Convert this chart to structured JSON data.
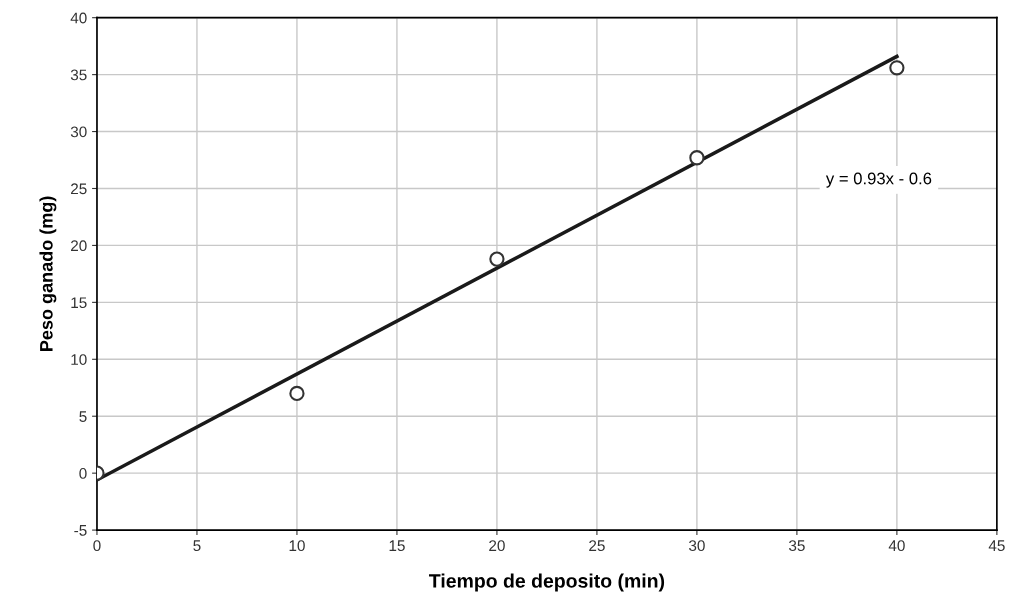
{
  "chart_data": {
    "type": "scatter",
    "xlabel": "Tiempo de deposito (min)",
    "ylabel": "Peso ganado (mg)",
    "xlim": [
      0,
      45
    ],
    "xticks": [
      0,
      5,
      10,
      15,
      20,
      25,
      30,
      35,
      40,
      45
    ],
    "ylim": [
      -5,
      40
    ],
    "yticks": [
      -5,
      0,
      5,
      10,
      15,
      20,
      25,
      30,
      35,
      40
    ],
    "grid": true,
    "series": [
      {
        "marker": "circle",
        "color": "#333333",
        "x": [
          0,
          10,
          20,
          30,
          40
        ],
        "values": [
          0,
          7,
          18.8,
          27.7,
          35.6
        ]
      },
      {
        "type": "line",
        "marker": "none",
        "line_style": "solid",
        "color": "#1a1a1a",
        "x": [
          0,
          40
        ],
        "values": [
          -0.6,
          36.6
        ]
      }
    ],
    "annotations": [
      "y = 0.93x - 0.6"
    ]
  }
}
